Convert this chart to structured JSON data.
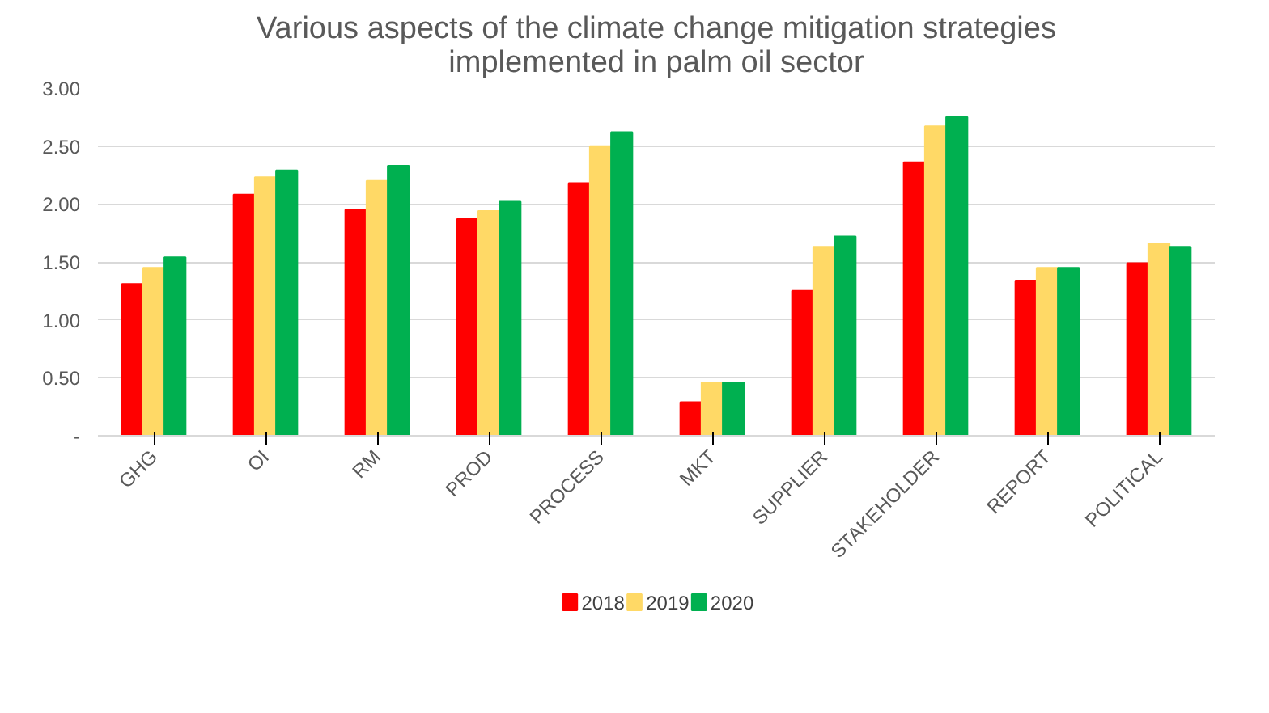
{
  "chart_data": {
    "type": "bar",
    "title": "Various aspects of the climate change mitigation strategies\nimplemented in palm oil sector",
    "categories": [
      "GHG",
      "OI",
      "RM",
      "PROD",
      "PROCESS",
      "MKT",
      "SUPPLIER",
      "STAKEHOLDER",
      "REPORT",
      "POLITICAL"
    ],
    "series": [
      {
        "name": "2018",
        "color": "#ff0000",
        "values": [
          1.31,
          2.08,
          1.95,
          1.87,
          2.18,
          0.29,
          1.25,
          2.36,
          1.34,
          1.49
        ]
      },
      {
        "name": "2019",
        "color": "#ffd966",
        "values": [
          1.45,
          2.23,
          2.2,
          1.94,
          2.5,
          0.46,
          1.63,
          2.67,
          1.45,
          1.66
        ]
      },
      {
        "name": "2020",
        "color": "#00b050",
        "values": [
          1.54,
          2.29,
          2.33,
          2.02,
          2.62,
          0.46,
          1.72,
          2.75,
          1.45,
          1.63
        ]
      }
    ],
    "ylim": [
      0,
      3
    ],
    "yticks": [
      {
        "value": 0,
        "label": "-"
      },
      {
        "value": 0.5,
        "label": "0.50"
      },
      {
        "value": 1,
        "label": "1.00"
      },
      {
        "value": 1.5,
        "label": "1.50"
      },
      {
        "value": 2,
        "label": "2.00"
      },
      {
        "value": 2.5,
        "label": "2.50"
      },
      {
        "value": 3,
        "label": "3.00"
      }
    ],
    "grid": "y",
    "legend": "bottom"
  }
}
